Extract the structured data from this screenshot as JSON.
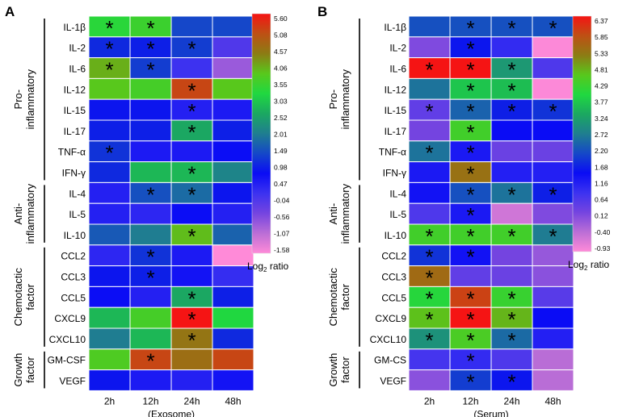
{
  "chart_data": [
    {
      "type": "heatmap",
      "panel": "A",
      "rows": [
        "IL-1β",
        "IL-2",
        "IL-6",
        "IL-12",
        "IL-15",
        "IL-17",
        "TNF-α",
        "IFN-γ",
        "IL-4",
        "IL-5",
        "IL-10",
        "CCL2",
        "CCL3",
        "CCL5",
        "CXCL9",
        "CXCL10",
        "GM-CSF",
        "VEGF"
      ],
      "columns": [
        "2h",
        "12h",
        "24h",
        "48h"
      ],
      "xlabel": "(Exosome)",
      "groups": [
        {
          "label_lines": [
            "Pro-",
            "inflammatory"
          ],
          "start": 0,
          "end": 7
        },
        {
          "label_lines": [
            "Anti-",
            "inflammatory"
          ],
          "start": 8,
          "end": 10
        },
        {
          "label_lines": [
            "Chemotactic",
            "factor"
          ],
          "start": 11,
          "end": 15
        },
        {
          "label_lines": [
            "Growth",
            "factor"
          ],
          "start": 16,
          "end": 17
        }
      ],
      "values": [
        [
          3.3,
          3.5,
          1.4,
          1.4
        ],
        [
          1.1,
          1.0,
          1.3,
          0.0
        ],
        [
          4.0,
          1.3,
          0.2,
          -0.7
        ],
        [
          3.8,
          3.6,
          5.1,
          3.8
        ],
        [
          0.9,
          0.9,
          0.5,
          0.6
        ],
        [
          1.0,
          1.0,
          2.6,
          1.0
        ],
        [
          1.2,
          0.6,
          0.6,
          0.8
        ],
        [
          1.1,
          2.8,
          2.8,
          2.1
        ],
        [
          0.5,
          1.5,
          1.8,
          0.9
        ],
        [
          0.5,
          0.4,
          0.8,
          0.5
        ],
        [
          1.6,
          2.0,
          3.9,
          1.7
        ],
        [
          0.4,
          1.2,
          0.6,
          -1.6
        ],
        [
          0.9,
          1.0,
          0.7,
          0.3
        ],
        [
          0.8,
          0.5,
          2.6,
          1.0
        ],
        [
          2.8,
          3.6,
          5.6,
          3.2
        ],
        [
          2.0,
          2.8,
          4.5,
          1.1
        ],
        [
          3.7,
          5.1,
          4.6,
          5.1
        ],
        [
          0.9,
          0.6,
          0.5,
          0.7
        ]
      ],
      "significant": [
        [
          0,
          0
        ],
        [
          0,
          1
        ],
        [
          1,
          0
        ],
        [
          1,
          1
        ],
        [
          1,
          2
        ],
        [
          2,
          0
        ],
        [
          2,
          1
        ],
        [
          3,
          2
        ],
        [
          4,
          2
        ],
        [
          5,
          2
        ],
        [
          6,
          0
        ],
        [
          7,
          2
        ],
        [
          8,
          1
        ],
        [
          8,
          2
        ],
        [
          10,
          2
        ],
        [
          11,
          1
        ],
        [
          12,
          1
        ],
        [
          13,
          2
        ],
        [
          14,
          2
        ],
        [
          15,
          2
        ],
        [
          16,
          1
        ]
      ],
      "colorbar": {
        "title": "Log",
        "subscript": "2",
        "title_suffix": " ratio",
        "ticks": [
          "5.60",
          "5.08",
          "4.57",
          "4.06",
          "3.55",
          "3.03",
          "2.52",
          "2.01",
          "1.49",
          "0.98",
          "0.47",
          "-0.04",
          "-0.56",
          "-1.07",
          "-1.58"
        ],
        "range": [
          -1.58,
          5.6
        ]
      }
    },
    {
      "type": "heatmap",
      "panel": "B",
      "rows": [
        "IL-1β",
        "IL-2",
        "IL-6",
        "IL-12",
        "IL-15",
        "IL-17",
        "TNF-α",
        "IFN-γ",
        "IL-4",
        "IL-5",
        "IL-10",
        "CCL2",
        "CCL3",
        "CCL5",
        "CXCL9",
        "CXCL10",
        "GM-CS",
        "VEGF"
      ],
      "columns": [
        "2h",
        "12h",
        "24h",
        "48h"
      ],
      "xlabel": "(Serum)",
      "groups": [
        {
          "label_lines": [
            "Pro-",
            "inflammatory"
          ],
          "start": 0,
          "end": 7
        },
        {
          "label_lines": [
            "Anti-",
            "inflammatory"
          ],
          "start": 8,
          "end": 10
        },
        {
          "label_lines": [
            "Chemotactic",
            "factor"
          ],
          "start": 11,
          "end": 15
        },
        {
          "label_lines": [
            "Growth",
            "factor"
          ],
          "start": 16,
          "end": 17
        }
      ],
      "values": [
        [
          2.2,
          2.2,
          2.2,
          2.2
        ],
        [
          0.2,
          1.6,
          1.0,
          -0.9
        ],
        [
          6.4,
          6.4,
          3.1,
          0.7
        ],
        [
          2.6,
          3.7,
          3.6,
          -0.9
        ],
        [
          0.5,
          2.4,
          1.7,
          1.9
        ],
        [
          0.3,
          4.3,
          1.5,
          1.5
        ],
        [
          2.6,
          1.3,
          0.4,
          0.4
        ],
        [
          1.3,
          5.3,
          1.2,
          1.2
        ],
        [
          1.4,
          2.2,
          2.6,
          1.7
        ],
        [
          0.7,
          1.3,
          -0.5,
          0.2
        ],
        [
          4.3,
          4.3,
          4.3,
          2.7
        ],
        [
          1.9,
          1.4,
          0.3,
          0.0
        ],
        [
          5.4,
          0.5,
          0.4,
          0.1
        ],
        [
          4.0,
          5.9,
          4.2,
          0.6
        ],
        [
          4.6,
          6.4,
          4.7,
          1.5
        ],
        [
          3.0,
          4.4,
          2.5,
          1.2
        ],
        [
          0.8,
          1.0,
          0.7,
          -0.3
        ],
        [
          0.1,
          2.0,
          1.6,
          -0.3
        ]
      ],
      "significant": [
        [
          0,
          1
        ],
        [
          0,
          2
        ],
        [
          0,
          3
        ],
        [
          1,
          1
        ],
        [
          2,
          0
        ],
        [
          2,
          1
        ],
        [
          2,
          2
        ],
        [
          3,
          1
        ],
        [
          3,
          2
        ],
        [
          4,
          0
        ],
        [
          4,
          1
        ],
        [
          4,
          2
        ],
        [
          4,
          3
        ],
        [
          5,
          1
        ],
        [
          6,
          0
        ],
        [
          6,
          1
        ],
        [
          7,
          1
        ],
        [
          8,
          1
        ],
        [
          8,
          2
        ],
        [
          8,
          3
        ],
        [
          9,
          1
        ],
        [
          10,
          0
        ],
        [
          10,
          1
        ],
        [
          10,
          2
        ],
        [
          10,
          3
        ],
        [
          11,
          0
        ],
        [
          11,
          1
        ],
        [
          12,
          0
        ],
        [
          13,
          0
        ],
        [
          13,
          1
        ],
        [
          13,
          2
        ],
        [
          14,
          0
        ],
        [
          14,
          1
        ],
        [
          14,
          2
        ],
        [
          15,
          0
        ],
        [
          15,
          1
        ],
        [
          15,
          2
        ],
        [
          16,
          1
        ],
        [
          17,
          1
        ],
        [
          17,
          2
        ]
      ],
      "colorbar": {
        "title": "Log",
        "subscript": "2",
        "title_suffix": " ratio",
        "ticks": [
          "6.37",
          "5.85",
          "5.33",
          "4.81",
          "4.29",
          "3.77",
          "3.24",
          "2.72",
          "2.20",
          "1.68",
          "1.16",
          "0.64",
          "0.12",
          "-0.40",
          "-0.93"
        ],
        "range": [
          -0.93,
          6.37
        ]
      }
    }
  ],
  "colors": {
    "scale": [
      "#ff8ad8",
      "#bb6ed6",
      "#7544e0",
      "#3c32f0",
      "#0a0cf5",
      "#1548c8",
      "#1f7e90",
      "#1ba861",
      "#20d840",
      "#58c81c",
      "#8c7c14",
      "#be5014",
      "#f51414"
    ]
  }
}
